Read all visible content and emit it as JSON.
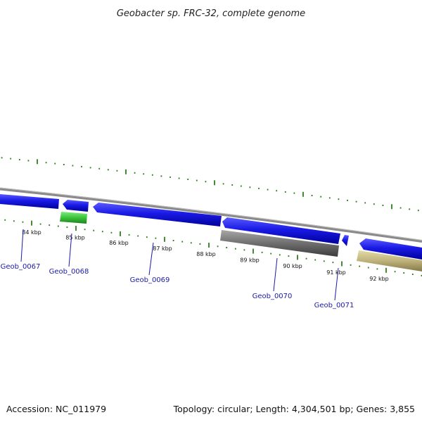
{
  "title": "Geobacter sp. FRC-32, complete genome",
  "footer": {
    "accession": "Accession: NC_011979",
    "summary": "Topology: circular; Length: 4,304,501 bp; Genes: 3,855"
  },
  "colors": {
    "backbone": "#8a8a8a",
    "tick": "#2e7d1e",
    "cds_forward": "#1a1ae6",
    "gene_green": "#3cc43c",
    "gene_gray": "#6e6e6e",
    "gene_tan": "#bdb27a",
    "label": "#1a1aa8"
  },
  "scale": {
    "unit": "kbp",
    "labels": [
      "84 kbp",
      "85 kbp",
      "86 kbp",
      "87 kbp",
      "88 kbp",
      "89 kbp",
      "90 kbp",
      "91 kbp",
      "92 kbp"
    ]
  },
  "genes": {
    "labels": [
      "Geob_0067",
      "Geob_0068",
      "Geob_0069",
      "Geob_0070",
      "Geob_0071"
    ]
  }
}
